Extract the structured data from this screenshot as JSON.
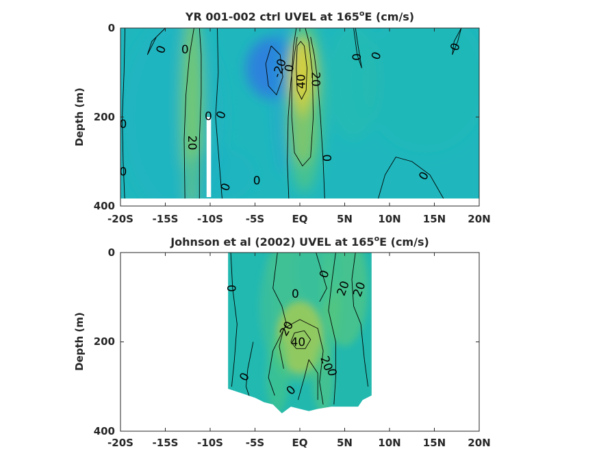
{
  "figure_colors": {
    "background": "#ffffff",
    "axis": "#262626",
    "contour": "#000000"
  },
  "chart_data": [
    {
      "type": "heatmap",
      "title_main": "YR 001-002 ctrl UVEL at 165",
      "title_sup": "o",
      "title_tail": "E (cm/s)",
      "ylabel": "Depth (m)",
      "xlabel": "",
      "x_ticks": [
        -20,
        -15,
        -10,
        -5,
        0,
        5,
        10,
        15,
        20
      ],
      "x_tick_labels": [
        "-20S",
        "-15S",
        "-10S",
        "-5S",
        "EQ",
        "5N",
        "10N",
        "15N",
        "20N"
      ],
      "y_ticks": [
        0,
        200,
        400
      ],
      "y_tick_labels": [
        "0",
        "200",
        "400"
      ],
      "xlim": [
        -20,
        20
      ],
      "ylim": [
        0,
        400
      ],
      "y_reversed": true,
      "colormap": "parula",
      "data_extent_depth": 380,
      "blobs": [
        {
          "x": -14,
          "y": 200,
          "rx": 6,
          "ry": 220,
          "value": -2,
          "opacity": 0.55
        },
        {
          "x": -12,
          "y": 180,
          "rx": 1.2,
          "ry": 220,
          "value": 25,
          "opacity": 0.75
        },
        {
          "x": -3,
          "y": 90,
          "rx": 3,
          "ry": 70,
          "value": -22,
          "opacity": 0.75
        },
        {
          "x": -1.8,
          "y": 150,
          "rx": 1.2,
          "ry": 180,
          "value": -10,
          "opacity": 0.45
        },
        {
          "x": 0.5,
          "y": 170,
          "rx": 2.2,
          "ry": 200,
          "value": 18,
          "opacity": 0.6
        },
        {
          "x": 0.3,
          "y": 110,
          "rx": 1.4,
          "ry": 90,
          "value": 42,
          "opacity": 0.9
        },
        {
          "x": 0.3,
          "y": 230,
          "rx": 1.3,
          "ry": 80,
          "value": 30,
          "opacity": 0.55
        },
        {
          "x": 6,
          "y": 120,
          "rx": 3,
          "ry": 130,
          "value": 6,
          "opacity": 0.35
        },
        {
          "x": 14,
          "y": 120,
          "rx": 7,
          "ry": 160,
          "value": 3,
          "opacity": 0.3
        },
        {
          "x": -9,
          "y": 330,
          "rx": 4,
          "ry": 60,
          "value": -3,
          "opacity": 0.35
        }
      ],
      "gap_columns": [
        {
          "x0": -10.4,
          "x1": -9.9,
          "y0": 200,
          "y1": 380
        }
      ],
      "contours": [
        {
          "points": [
            [
              -1.2,
              400
            ],
            [
              -1.4,
              300
            ],
            [
              -1.3,
              200
            ],
            [
              -1.0,
              120
            ],
            [
              -0.6,
              60
            ],
            [
              -0.3,
              20
            ]
          ]
        },
        {
          "points": [
            [
              2.8,
              400
            ],
            [
              2.6,
              300
            ],
            [
              2.3,
              200
            ],
            [
              2.0,
              120
            ],
            [
              1.6,
              60
            ],
            [
              1.2,
              20
            ]
          ]
        },
        {
          "points": [
            [
              -0.4,
              0
            ],
            [
              -0.7,
              40
            ],
            [
              -0.9,
              100
            ],
            [
              -0.9,
              200
            ],
            [
              -0.6,
              280
            ],
            [
              0.3,
              310
            ],
            [
              1.2,
              290
            ],
            [
              1.5,
              200
            ],
            [
              1.4,
              100
            ],
            [
              1.0,
              30
            ],
            [
              0.6,
              0
            ]
          ]
        },
        {
          "points": [
            [
              -0.3,
              40
            ],
            [
              -0.4,
              90
            ],
            [
              -0.3,
              140
            ],
            [
              0.2,
              160
            ],
            [
              0.7,
              140
            ],
            [
              0.8,
              90
            ],
            [
              0.5,
              40
            ],
            [
              0.1,
              30
            ],
            [
              -0.3,
              40
            ]
          ]
        },
        {
          "points": [
            [
              -3.2,
              40
            ],
            [
              -3.8,
              80
            ],
            [
              -3.5,
              130
            ],
            [
              -2.6,
              150
            ],
            [
              -1.9,
              110
            ],
            [
              -2.2,
              60
            ],
            [
              -3.2,
              40
            ]
          ]
        },
        {
          "points": [
            [
              -12.8,
              400
            ],
            [
              -12.9,
              250
            ],
            [
              -12.7,
              150
            ],
            [
              -12.3,
              60
            ],
            [
              -11.8,
              0
            ]
          ]
        },
        {
          "points": [
            [
              -11.2,
              400
            ],
            [
              -11.2,
              250
            ],
            [
              -11.0,
              150
            ],
            [
              -11.0,
              60
            ],
            [
              -11.2,
              0
            ]
          ]
        },
        {
          "points": [
            [
              -19.5,
              400
            ],
            [
              -19.7,
              300
            ],
            [
              -19.8,
              200
            ],
            [
              -19.6,
              100
            ],
            [
              -19.5,
              0
            ]
          ]
        },
        {
          "points": [
            [
              -9.2,
              0
            ],
            [
              -9.1,
              100
            ],
            [
              -9.4,
              200
            ],
            [
              -9.0,
              300
            ],
            [
              -8.6,
              400
            ]
          ]
        },
        {
          "points": [
            [
              -15,
              0
            ],
            [
              -16.5,
              30
            ],
            [
              -17.0,
              60
            ],
            [
              -16.0,
              20
            ],
            [
              -15,
              0
            ]
          ]
        },
        {
          "points": [
            [
              8.5,
              400
            ],
            [
              9.5,
              330
            ],
            [
              10.7,
              290
            ],
            [
              12.5,
              300
            ],
            [
              14.5,
              330
            ],
            [
              16.5,
              400
            ]
          ]
        },
        {
          "points": [
            [
              6.2,
              0
            ],
            [
              6.5,
              40
            ],
            [
              6.9,
              90
            ],
            [
              6.4,
              60
            ],
            [
              6.0,
              0
            ]
          ]
        },
        {
          "points": [
            [
              18,
              0
            ],
            [
              17.2,
              30
            ],
            [
              17.0,
              60
            ],
            [
              17.6,
              30
            ],
            [
              18,
              0
            ]
          ]
        }
      ],
      "contour_labels": [
        {
          "text": "0",
          "x": -15.5,
          "y": 48,
          "angle": -70
        },
        {
          "text": "0",
          "x": -12.8,
          "y": 48,
          "angle": 0
        },
        {
          "text": "-20",
          "x": -2.3,
          "y": 90,
          "angle": -70
        },
        {
          "text": "0",
          "x": -1.2,
          "y": 90,
          "angle": -80
        },
        {
          "text": "40",
          "x": 0.1,
          "y": 120,
          "angle": -90
        },
        {
          "text": "20",
          "x": 1.8,
          "y": 115,
          "angle": 90
        },
        {
          "text": "0",
          "x": 6.3,
          "y": 65,
          "angle": 90
        },
        {
          "text": "0",
          "x": 8.5,
          "y": 62,
          "angle": -70
        },
        {
          "text": "0",
          "x": 17.3,
          "y": 42,
          "angle": -70
        },
        {
          "text": "0",
          "x": -10.2,
          "y": 198,
          "angle": 0
        },
        {
          "text": "0",
          "x": -8.8,
          "y": 195,
          "angle": -70
        },
        {
          "text": "0",
          "x": -19.7,
          "y": 215,
          "angle": 0
        },
        {
          "text": "20",
          "x": -12.0,
          "y": 258,
          "angle": 90
        },
        {
          "text": "0",
          "x": -19.7,
          "y": 322,
          "angle": 0
        },
        {
          "text": "0",
          "x": -8.3,
          "y": 357,
          "angle": -70
        },
        {
          "text": "0",
          "x": -4.8,
          "y": 342,
          "angle": 0
        },
        {
          "text": "0",
          "x": 3.0,
          "y": 292,
          "angle": 90
        },
        {
          "text": "0",
          "x": 13.8,
          "y": 332,
          "angle": -60
        }
      ]
    },
    {
      "type": "heatmap",
      "title_main": "Johnson et al (2002) UVEL at 165",
      "title_sup": "o",
      "title_tail": "E (cm/s)",
      "ylabel": "Depth (m)",
      "xlabel": "",
      "x_ticks": [
        -20,
        -15,
        -10,
        -5,
        0,
        5,
        10,
        15,
        20
      ],
      "x_tick_labels": [
        "-20S",
        "-15S",
        "-10S",
        "-5S",
        "EQ",
        "5N",
        "10N",
        "15N",
        "20N"
      ],
      "y_ticks": [
        0,
        200,
        400
      ],
      "y_tick_labels": [
        "0",
        "200",
        "400"
      ],
      "xlim": [
        -20,
        20
      ],
      "ylim": [
        0,
        400
      ],
      "y_reversed": true,
      "colormap": "parula",
      "data_region": {
        "x_left": -8,
        "x_right": 8,
        "bottom_steps": [
          [
            -8,
            305
          ],
          [
            -6.5,
            315
          ],
          [
            -5,
            325
          ],
          [
            -4,
            335
          ],
          [
            -3,
            340
          ],
          [
            -2,
            360
          ],
          [
            -1,
            345
          ],
          [
            0,
            350
          ],
          [
            1,
            355
          ],
          [
            2,
            350
          ],
          [
            3.5,
            345
          ],
          [
            5,
            345
          ],
          [
            6.5,
            345
          ],
          [
            7,
            330
          ],
          [
            8,
            320
          ]
        ]
      },
      "blobs": [
        {
          "x": 0,
          "y": 190,
          "rx": 2.6,
          "ry": 80,
          "value": 40,
          "opacity": 0.8
        },
        {
          "x": 0,
          "y": 120,
          "rx": 4.5,
          "ry": 170,
          "value": 18,
          "opacity": 0.45
        },
        {
          "x": 5,
          "y": 80,
          "rx": 2.6,
          "ry": 130,
          "value": 18,
          "opacity": 0.55
        },
        {
          "x": -2.5,
          "y": 270,
          "rx": 1.3,
          "ry": 90,
          "value": 15,
          "opacity": 0.5
        },
        {
          "x": 2.6,
          "y": 280,
          "rx": 1.2,
          "ry": 80,
          "value": 18,
          "opacity": 0.5
        },
        {
          "x": -6,
          "y": 150,
          "rx": 3,
          "ry": 200,
          "value": 2,
          "opacity": 0.3
        },
        {
          "x": 2,
          "y": 40,
          "rx": 2.5,
          "ry": 80,
          "value": 6,
          "opacity": 0.35
        }
      ],
      "contours": [
        {
          "points": [
            [
              -7.7,
              0
            ],
            [
              -7.5,
              80
            ],
            [
              -7.0,
              160
            ],
            [
              -7.3,
              240
            ],
            [
              -7.6,
              300
            ]
          ]
        },
        {
          "points": [
            [
              -2.5,
              0
            ],
            [
              -3.0,
              80
            ],
            [
              -2.0,
              120
            ],
            [
              -1.5,
              160
            ],
            [
              -3.0,
              220
            ],
            [
              -3.5,
              280
            ],
            [
              -2.8,
              320
            ]
          ]
        },
        {
          "points": [
            [
              -1.8,
              260
            ],
            [
              -2.3,
              210
            ],
            [
              -1.8,
              170
            ],
            [
              0,
              150
            ],
            [
              2.0,
              170
            ],
            [
              2.6,
              220
            ],
            [
              2.2,
              290
            ],
            [
              2.6,
              340
            ]
          ]
        },
        {
          "points": [
            [
              -1.0,
              200
            ],
            [
              -0.6,
              180
            ],
            [
              0.5,
              175
            ],
            [
              1.2,
              195
            ],
            [
              0.6,
              215
            ],
            [
              -0.4,
              215
            ],
            [
              -1.0,
              200
            ]
          ]
        },
        {
          "points": [
            [
              -5.2,
              200
            ],
            [
              -5.8,
              260
            ],
            [
              -6.0,
              300
            ],
            [
              -5.5,
              330
            ]
          ]
        },
        {
          "points": [
            [
              -0.2,
              330
            ],
            [
              0.5,
              280
            ],
            [
              1.0,
              240
            ],
            [
              2.0,
              270
            ],
            [
              2.0,
              330
            ]
          ]
        },
        {
          "points": [
            [
              4.0,
              0
            ],
            [
              3.6,
              60
            ],
            [
              3.2,
              130
            ],
            [
              4.0,
              200
            ],
            [
              4.0,
              280
            ],
            [
              3.8,
              340
            ]
          ]
        },
        {
          "points": [
            [
              6.2,
              0
            ],
            [
              5.8,
              60
            ],
            [
              6.0,
              120
            ],
            [
              6.8,
              160
            ],
            [
              7.2,
              240
            ],
            [
              7.6,
              300
            ]
          ]
        },
        {
          "points": [
            [
              1.8,
              0
            ],
            [
              2.4,
              40
            ],
            [
              3.0,
              80
            ],
            [
              2.2,
              110
            ]
          ]
        }
      ],
      "contour_labels": [
        {
          "text": "0",
          "x": -7.6,
          "y": 80,
          "angle": -90
        },
        {
          "text": "0",
          "x": -0.5,
          "y": 92,
          "angle": 0
        },
        {
          "text": "0",
          "x": 2.7,
          "y": 48,
          "angle": -70
        },
        {
          "text": "20",
          "x": 4.8,
          "y": 80,
          "angle": -70
        },
        {
          "text": "20",
          "x": 6.6,
          "y": 82,
          "angle": -70
        },
        {
          "text": "20",
          "x": -1.5,
          "y": 170,
          "angle": -60
        },
        {
          "text": "40",
          "x": -0.2,
          "y": 200,
          "angle": 0
        },
        {
          "text": "20",
          "x": 3.0,
          "y": 248,
          "angle": 70
        },
        {
          "text": "0",
          "x": 3.6,
          "y": 268,
          "angle": 80
        },
        {
          "text": "0",
          "x": -6.2,
          "y": 278,
          "angle": -60
        },
        {
          "text": "0",
          "x": -1.0,
          "y": 308,
          "angle": -45
        }
      ]
    }
  ]
}
